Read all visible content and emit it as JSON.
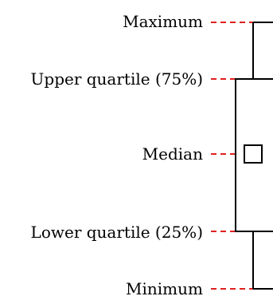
{
  "labels": {
    "maximum": "Maximum",
    "upper_quartile": "Upper quartile (75%)",
    "median": "Median",
    "lower_quartile": "Lower quartile (25%)",
    "minimum": "Minimum"
  },
  "colors": {
    "leader": "#e02020",
    "stroke": "#000000",
    "background": "#ffffff"
  }
}
